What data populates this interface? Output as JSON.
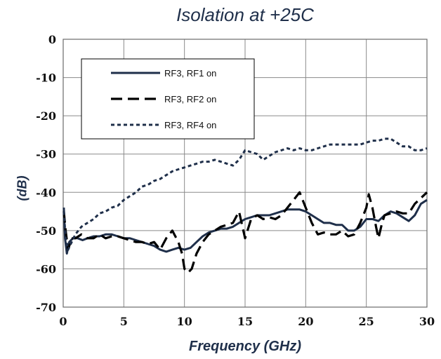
{
  "chart_data": {
    "type": "line",
    "title": "Isolation at +25C",
    "xlabel": "Frequency (GHz)",
    "ylabel": "(dB)",
    "xlim": [
      0,
      30
    ],
    "ylim": [
      -70,
      0
    ],
    "x_ticks": [
      "0",
      "5",
      "10",
      "15",
      "20",
      "25",
      "30"
    ],
    "y_ticks": [
      "0",
      "-10",
      "-20",
      "-30",
      "-40",
      "-50",
      "-60",
      "-70"
    ],
    "grid": true,
    "legend_position": "top-left",
    "series": [
      {
        "name": "RF3, RF1 on",
        "style": "solid",
        "color": "#1f2f4a",
        "x": [
          0.05,
          0.15,
          0.3,
          0.5,
          0.8,
          1.2,
          1.6,
          2,
          2.5,
          3,
          3.5,
          4,
          4.5,
          5,
          5.5,
          6,
          6.5,
          7,
          7.5,
          8,
          8.5,
          9,
          9.5,
          10,
          10.5,
          11,
          11.5,
          12,
          12.5,
          13,
          13.5,
          14,
          14.5,
          15,
          15.5,
          16,
          16.5,
          17,
          17.5,
          18,
          18.5,
          19,
          19.5,
          20,
          20.5,
          21,
          21.5,
          22,
          22.5,
          23,
          23.5,
          24,
          24.5,
          25,
          25.5,
          26,
          26.5,
          27,
          27.5,
          28,
          28.5,
          29,
          29.5,
          30
        ],
        "y": [
          -44,
          -52,
          -56,
          -53,
          -52,
          -52,
          -52.5,
          -52,
          -51.5,
          -51.5,
          -51,
          -51,
          -51.5,
          -52,
          -52,
          -52.5,
          -53,
          -53.5,
          -54,
          -55,
          -55.5,
          -55,
          -54.5,
          -55,
          -54.5,
          -53,
          -51.5,
          -50.5,
          -50,
          -49.5,
          -49.5,
          -49,
          -48,
          -47,
          -46.5,
          -46,
          -46,
          -46,
          -45.5,
          -45,
          -44.5,
          -44.5,
          -44.5,
          -45,
          -46,
          -47,
          -48,
          -48,
          -48.5,
          -48.5,
          -50,
          -50,
          -49,
          -47,
          -47,
          -47.5,
          -46,
          -45,
          -45.5,
          -46.5,
          -47.5,
          -46,
          -43,
          -42
        ]
      },
      {
        "name": "RF3, RF2 on",
        "style": "dashed",
        "color": "#000000",
        "x": [
          0.05,
          0.2,
          0.4,
          0.7,
          1,
          1.5,
          2,
          2.5,
          3,
          3.5,
          4,
          4.5,
          5,
          5.5,
          6,
          6.5,
          7,
          7.5,
          8,
          8.5,
          9,
          9.5,
          9.8,
          10,
          10.3,
          10.6,
          11,
          11.5,
          12,
          12.5,
          13,
          13.5,
          14,
          14.5,
          15,
          15.5,
          16,
          16.5,
          17,
          17.5,
          18,
          18.5,
          19,
          19.5,
          20,
          20.5,
          21,
          21.5,
          22,
          22.5,
          23,
          23.5,
          24,
          24.5,
          25,
          25.2,
          25.5,
          25.8,
          26,
          26.3,
          26.5,
          27,
          27.5,
          28,
          28.5,
          29,
          29.5,
          30
        ],
        "y": [
          -45,
          -50,
          -55,
          -52,
          -52,
          -51,
          -52,
          -52,
          -51,
          -52,
          -51.5,
          -51.5,
          -52,
          -52.5,
          -53,
          -53,
          -53.5,
          -53,
          -55,
          -52,
          -50,
          -53,
          -56,
          -60,
          -61,
          -60,
          -56,
          -53,
          -51,
          -50,
          -49,
          -48.5,
          -48,
          -45,
          -52,
          -47,
          -46,
          -47,
          -46.5,
          -47,
          -46,
          -44,
          -42,
          -40,
          -44,
          -48,
          -51,
          -50.5,
          -51,
          -51,
          -50,
          -51.5,
          -51,
          -48,
          -44,
          -40.5,
          -44,
          -49,
          -52,
          -48,
          -46,
          -45.5,
          -45,
          -45.5,
          -45.5,
          -43,
          -41.5,
          -40
        ]
      },
      {
        "name": "RF3, RF4 on",
        "style": "dotted",
        "color": "#1f2f4a",
        "x": [
          0.05,
          0.2,
          0.4,
          0.7,
          1,
          1.5,
          2,
          2.5,
          3,
          3.5,
          4,
          4.5,
          5,
          5.5,
          6,
          6.5,
          7,
          7.5,
          8,
          8.5,
          9,
          9.5,
          10,
          10.5,
          11,
          11.5,
          12,
          12.5,
          13,
          13.5,
          14,
          14.5,
          15,
          15.5,
          16,
          16.5,
          17,
          17.5,
          18,
          18.5,
          19,
          19.5,
          20,
          20.5,
          21,
          21.5,
          22,
          22.5,
          23,
          23.5,
          24,
          24.5,
          25,
          25.5,
          26,
          26.5,
          27,
          27.5,
          28,
          28.5,
          29,
          29.5,
          30
        ],
        "y": [
          -45,
          -52,
          -55,
          -53,
          -51,
          -49,
          -48,
          -47,
          -45.5,
          -45,
          -44,
          -43.5,
          -42,
          -41,
          -40,
          -38.5,
          -38,
          -37,
          -36.5,
          -35.5,
          -34.5,
          -34,
          -33.5,
          -33,
          -32.5,
          -32,
          -32,
          -31.5,
          -32,
          -32.5,
          -33,
          -31.5,
          -29,
          -29.5,
          -30,
          -31.5,
          -30.5,
          -29.5,
          -29,
          -28.5,
          -29,
          -28.5,
          -29,
          -29,
          -28.5,
          -28,
          -27.5,
          -27.5,
          -27.5,
          -27.5,
          -27.5,
          -27.5,
          -27,
          -26.5,
          -26.5,
          -26,
          -26,
          -27,
          -28,
          -28,
          -29,
          -29,
          -28.5
        ]
      }
    ]
  }
}
